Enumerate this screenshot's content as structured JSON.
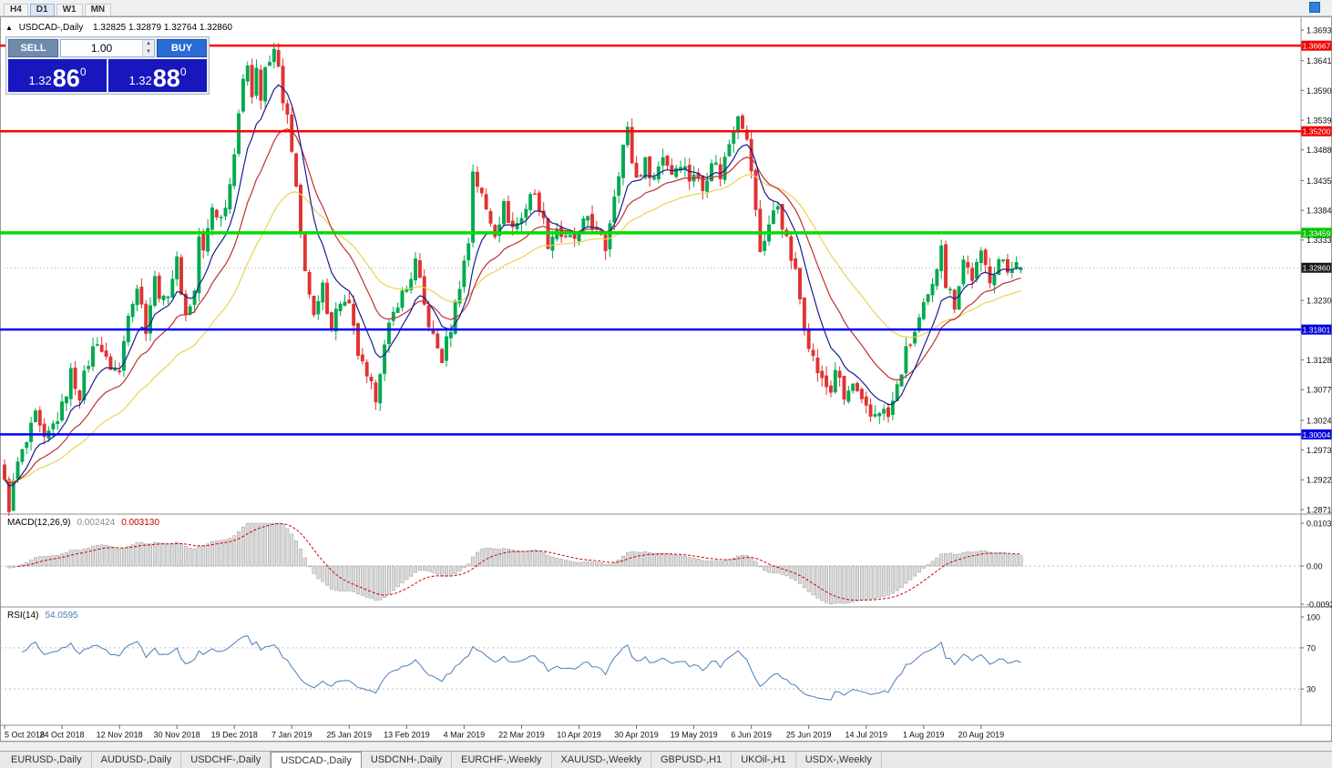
{
  "icons": {
    "collapse_arrow": "▲",
    "spin_up": "▲",
    "spin_down": "▼"
  },
  "toolbar": {
    "timeframes": [
      "H4",
      "D1",
      "W1",
      "MN"
    ],
    "active": "D1"
  },
  "chart_header": {
    "symbol": "USDCAD-,Daily",
    "ohlc": "1.32825 1.32879 1.32764 1.32860"
  },
  "trade_panel": {
    "sell_label": "SELL",
    "buy_label": "BUY",
    "volume": "1.00",
    "sell_price": {
      "big": "1.32",
      "pips": "86",
      "sup": "0"
    },
    "buy_price": {
      "big": "1.32",
      "pips": "88",
      "sup": "0"
    }
  },
  "price_axis": {
    "labels": [
      "1.36935",
      "1.36410",
      "1.35900",
      "1.35390",
      "1.34880",
      "1.34355",
      "1.33845",
      "1.33335",
      "1.32300",
      "1.31280",
      "1.30770",
      "1.30245",
      "1.29735",
      "1.29225",
      "1.28715"
    ]
  },
  "current_price_badge": {
    "label": "1.32860",
    "value": 1.3286,
    "bg": "#1a1a1a"
  },
  "hlines": [
    {
      "price": 1.36667,
      "label": "1.36667",
      "color": "#ff0000",
      "badge": "#f00000",
      "width": 2.5
    },
    {
      "price": 1.352,
      "label": "1.35200",
      "color": "#ff0000",
      "badge": "#f00000",
      "width": 2.5
    },
    {
      "price": 1.33459,
      "label": "1.33459",
      "color": "#00dd00",
      "badge": "#00c400",
      "width": 3.5
    },
    {
      "price": 1.31801,
      "label": "1.31801",
      "color": "#0000ff",
      "badge": "#0000dd",
      "width": 2.5
    },
    {
      "price": 1.30004,
      "label": "1.30004",
      "color": "#0000ff",
      "badge": "#0000dd",
      "width": 2.5
    }
  ],
  "macd_panel": {
    "title": "MACD(12,26,9)",
    "value_main": "0.002424",
    "value_signal": "0.003130",
    "axis_labels": [
      {
        "text": "0.010311",
        "value": 0.010311
      },
      {
        "text": "0.00",
        "value": 0
      },
      {
        "text": "-0.009203",
        "value": -0.009203
      }
    ]
  },
  "rsi_panel": {
    "title": "RSI(14)",
    "value": "54.0595",
    "axis_labels": [
      {
        "text": "100",
        "value": 100
      },
      {
        "text": "70",
        "value": 70
      },
      {
        "text": "30",
        "value": 30
      }
    ],
    "levels": [
      70,
      30
    ]
  },
  "date_axis": [
    {
      "label": "5 Oct 2018",
      "bar": 0
    },
    {
      "label": "24 Oct 2018",
      "bar": 13
    },
    {
      "label": "12 Nov 2018",
      "bar": 26
    },
    {
      "label": "30 Nov 2018",
      "bar": 39
    },
    {
      "label": "19 Dec 2018",
      "bar": 52
    },
    {
      "label": "7 Jan 2019",
      "bar": 65
    },
    {
      "label": "25 Jan 2019",
      "bar": 78
    },
    {
      "label": "13 Feb 2019",
      "bar": 91
    },
    {
      "label": "4 Mar 2019",
      "bar": 104
    },
    {
      "label": "22 Mar 2019",
      "bar": 117
    },
    {
      "label": "10 Apr 2019",
      "bar": 130
    },
    {
      "label": "30 Apr 2019",
      "bar": 143
    },
    {
      "label": "19 May 2019",
      "bar": 156
    },
    {
      "label": "6 Jun 2019",
      "bar": 169
    },
    {
      "label": "25 Jun 2019",
      "bar": 182
    },
    {
      "label": "14 Jul 2019",
      "bar": 195
    },
    {
      "label": "1 Aug 2019",
      "bar": 208
    },
    {
      "label": "20 Aug 2019",
      "bar": 221
    }
  ],
  "tabs": {
    "active_index": 3,
    "items": [
      "EURUSD-,Daily",
      "AUDUSD-,Daily",
      "USDCHF-,Daily",
      "USDCAD-,Daily",
      "USDCNH-,Daily",
      "EURCHF-,Weekly",
      "XAUUSD-,Weekly",
      "GBPUSD-,H1",
      "UKOil-,H1",
      "USDX-,Weekly"
    ]
  },
  "chart_data": {
    "type": "candlestick",
    "symbol": "USDCAD-",
    "timeframe": "Daily",
    "visible_price_range": [
      1.28715,
      1.36935
    ],
    "last_bar_ohlc": {
      "open": 1.32825,
      "high": 1.32879,
      "low": 1.32764,
      "close": 1.3286
    },
    "bars_visible": 231,
    "close_waypoints": [
      [
        0,
        1.2915
      ],
      [
        1,
        1.2878
      ],
      [
        3,
        1.295
      ],
      [
        5,
        1.2985
      ],
      [
        7,
        1.303
      ],
      [
        9,
        1.2985
      ],
      [
        11,
        1.3015
      ],
      [
        13,
        1.3045
      ],
      [
        15,
        1.3105
      ],
      [
        17,
        1.307
      ],
      [
        19,
        1.3125
      ],
      [
        21,
        1.3165
      ],
      [
        23,
        1.3125
      ],
      [
        26,
        1.3105
      ],
      [
        28,
        1.3215
      ],
      [
        30,
        1.3255
      ],
      [
        32,
        1.3185
      ],
      [
        34,
        1.3265
      ],
      [
        36,
        1.3225
      ],
      [
        39,
        1.3295
      ],
      [
        41,
        1.3205
      ],
      [
        43,
        1.3245
      ],
      [
        44,
        1.334
      ],
      [
        45,
        1.331
      ],
      [
        47,
        1.339
      ],
      [
        49,
        1.337
      ],
      [
        51,
        1.343
      ],
      [
        53,
        1.3555
      ],
      [
        55,
        1.364
      ],
      [
        56,
        1.359
      ],
      [
        57,
        1.363
      ],
      [
        58,
        1.3575
      ],
      [
        59,
        1.362
      ],
      [
        61,
        1.3655
      ],
      [
        62,
        1.364
      ],
      [
        63,
        1.356
      ],
      [
        64,
        1.3545
      ],
      [
        65,
        1.348
      ],
      [
        66,
        1.3415
      ],
      [
        67,
        1.334
      ],
      [
        68,
        1.329
      ],
      [
        69,
        1.324
      ],
      [
        70,
        1.3195
      ],
      [
        72,
        1.325
      ],
      [
        74,
        1.319
      ],
      [
        76,
        1.323
      ],
      [
        78,
        1.3215
      ],
      [
        80,
        1.314
      ],
      [
        82,
        1.309
      ],
      [
        84,
        1.3068
      ],
      [
        85,
        1.3115
      ],
      [
        87,
        1.318
      ],
      [
        89,
        1.323
      ],
      [
        91,
        1.325
      ],
      [
        93,
        1.3295
      ],
      [
        95,
        1.322
      ],
      [
        97,
        1.3165
      ],
      [
        99,
        1.313
      ],
      [
        101,
        1.3185
      ],
      [
        103,
        1.326
      ],
      [
        105,
        1.333
      ],
      [
        106,
        1.3455
      ],
      [
        107,
        1.343
      ],
      [
        109,
        1.3385
      ],
      [
        111,
        1.335
      ],
      [
        113,
        1.339
      ],
      [
        115,
        1.3355
      ],
      [
        117,
        1.337
      ],
      [
        119,
        1.3415
      ],
      [
        121,
        1.3395
      ],
      [
        123,
        1.333
      ],
      [
        125,
        1.3355
      ],
      [
        127,
        1.333
      ],
      [
        130,
        1.334
      ],
      [
        132,
        1.3375
      ],
      [
        134,
        1.3345
      ],
      [
        136,
        1.332
      ],
      [
        138,
        1.3415
      ],
      [
        140,
        1.3495
      ],
      [
        141,
        1.352
      ],
      [
        142,
        1.347
      ],
      [
        143,
        1.344
      ],
      [
        145,
        1.3465
      ],
      [
        147,
        1.344
      ],
      [
        149,
        1.348
      ],
      [
        151,
        1.345
      ],
      [
        153,
        1.347
      ],
      [
        155,
        1.344
      ],
      [
        156,
        1.345
      ],
      [
        158,
        1.342
      ],
      [
        160,
        1.3475
      ],
      [
        162,
        1.3445
      ],
      [
        164,
        1.35
      ],
      [
        166,
        1.3555
      ],
      [
        167,
        1.3535
      ],
      [
        168,
        1.35
      ],
      [
        169,
        1.3455
      ],
      [
        170,
        1.338
      ],
      [
        171,
        1.3315
      ],
      [
        173,
        1.336
      ],
      [
        175,
        1.3395
      ],
      [
        177,
        1.333
      ],
      [
        179,
        1.3275
      ],
      [
        181,
        1.319
      ],
      [
        183,
        1.313
      ],
      [
        185,
        1.309
      ],
      [
        187,
        1.3075
      ],
      [
        188,
        1.3115
      ],
      [
        190,
        1.306
      ],
      [
        192,
        1.3085
      ],
      [
        194,
        1.305
      ],
      [
        196,
        1.303
      ],
      [
        198,
        1.3045
      ],
      [
        200,
        1.303
      ],
      [
        202,
        1.308
      ],
      [
        204,
        1.314
      ],
      [
        206,
        1.3175
      ],
      [
        208,
        1.3215
      ],
      [
        210,
        1.325
      ],
      [
        211,
        1.329
      ],
      [
        212,
        1.3335
      ],
      [
        213,
        1.326
      ],
      [
        215,
        1.3225
      ],
      [
        217,
        1.33
      ],
      [
        219,
        1.327
      ],
      [
        221,
        1.3305
      ],
      [
        223,
        1.327
      ],
      [
        225,
        1.33
      ],
      [
        227,
        1.328
      ],
      [
        229,
        1.3305
      ],
      [
        230,
        1.3286
      ]
    ],
    "moving_averages": [
      {
        "name": "slow",
        "period": 38,
        "color": "#ecd24e"
      },
      {
        "name": "medium",
        "period": 19,
        "color": "#c03030"
      },
      {
        "name": "fast",
        "period": 9,
        "color": "#1c1c8f"
      }
    ],
    "horizontal_levels": [
      1.36667,
      1.352,
      1.33459,
      1.31801,
      1.30004
    ],
    "indicators": [
      {
        "name": "MACD",
        "params": [
          12,
          26,
          9
        ],
        "current": [
          0.002424,
          0.00313
        ],
        "axis_range": [
          -0.009203,
          0.010311
        ]
      },
      {
        "name": "RSI",
        "params": [
          14
        ],
        "current": 54.0595,
        "levels": [
          30,
          70
        ],
        "range": [
          0,
          100
        ]
      }
    ],
    "colors": {
      "up": "#00a94f",
      "down": "#e03232",
      "macd_hist_fill": "#dcdcdc",
      "macd_hist_stroke": "#999999",
      "macd_signal": "#cc0000",
      "rsi_line": "#4a7ebb",
      "bid_line": "#aaaaaa"
    }
  }
}
